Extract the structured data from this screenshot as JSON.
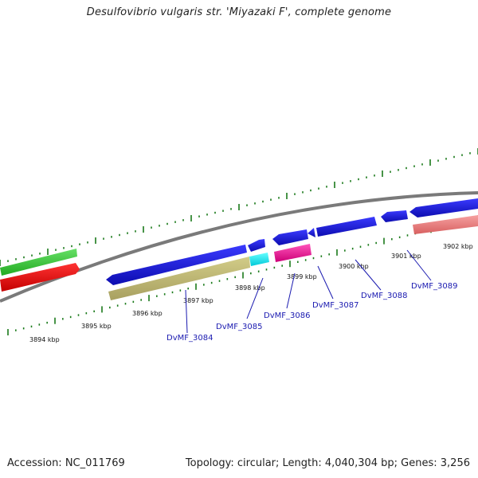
{
  "title": "Desulfovibrio vulgaris str. 'Miyazaki F', complete genome",
  "footer": {
    "accession": "Accession: NC_011769",
    "summary": "Topology: circular; Length: 4,040,304 bp; Genes: 3,256"
  },
  "kbp_labels": [
    "3894 kbp",
    "3895 kbp",
    "3896 kbp",
    "3897 kbp",
    "3898 kbp",
    "3899 kbp",
    "3900 kbp",
    "3901 kbp",
    "3902 kbp"
  ],
  "gene_labels": [
    "DvMF_3084",
    "DvMF_3085",
    "DvMF_3086",
    "DvMF_3087",
    "DvMF_3088",
    "DvMF_3089"
  ],
  "colors": {
    "backbone": "#8c8c8c",
    "tick": "#1a7a1a",
    "cds_blue": "#1a1ad6",
    "green": "#33cc33",
    "red": "#ee1111",
    "khaki": "#bdb76b",
    "cyan": "#00e5ee",
    "magenta": "#ee1199",
    "salmon": "#ee8080",
    "label": "#1a1ab0"
  }
}
